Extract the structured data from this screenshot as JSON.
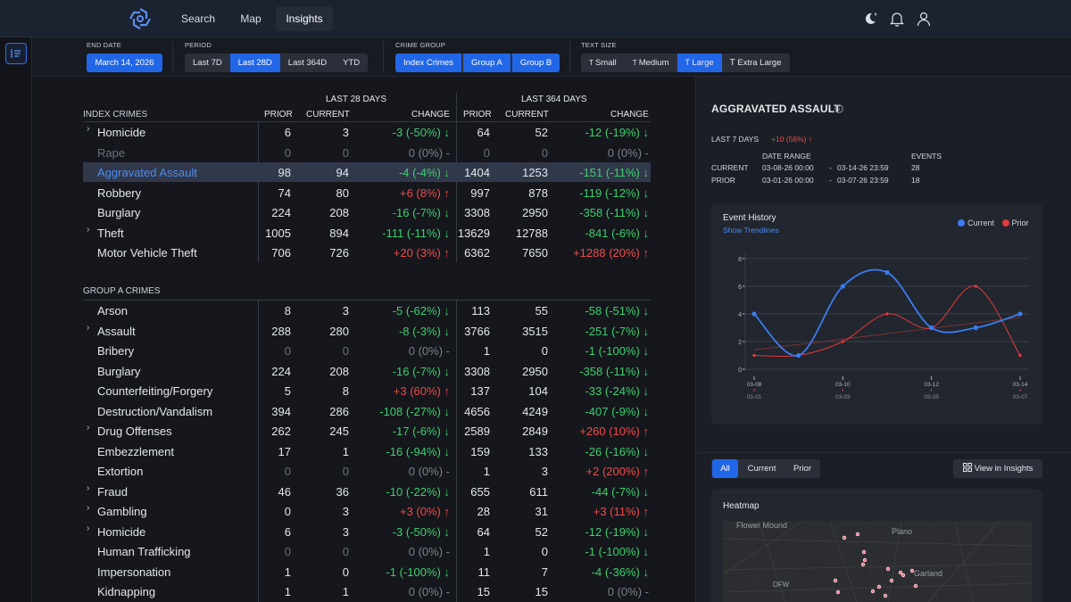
{
  "nav": {
    "tabs": [
      "Search",
      "Map",
      "Insights"
    ],
    "active_tab": "Insights"
  },
  "filters": {
    "end_date": {
      "label": "END DATE",
      "value": "March 14, 2026"
    },
    "period": {
      "label": "PERIOD",
      "options": [
        "Last 7D",
        "Last 28D",
        "Last 364D",
        "YTD"
      ],
      "selected": "Last 28D"
    },
    "crime_group": {
      "label": "CRIME GROUP",
      "options": [
        "Index Crimes",
        "Group A",
        "Group B"
      ],
      "selected": [
        "Index Crimes",
        "Group A",
        "Group B"
      ]
    },
    "text_size": {
      "label": "TEXT SIZE",
      "options": [
        "Small",
        "Medium",
        "Large",
        "Extra Large"
      ],
      "selected": "Large"
    }
  },
  "table": {
    "period_headers": [
      "LAST 28 DAYS",
      "LAST 364 DAYS"
    ],
    "columns": [
      "PRIOR",
      "CURRENT",
      "CHANGE",
      "PRIOR",
      "CURRENT",
      "CHANGE"
    ],
    "groups": [
      {
        "title": "INDEX CRIMES",
        "rows": [
          {
            "name": "Homicide",
            "chev": true,
            "p28": "6",
            "c28": "3",
            "ch28": "-3 (-50%) ↓",
            "p364": "64",
            "c364": "52",
            "ch364": "-12 (-19%) ↓"
          },
          {
            "name": "Rape",
            "chev": false,
            "dim": true,
            "p28": "0",
            "c28": "0",
            "ch28": "0 (0%) -",
            "p364": "0",
            "c364": "0",
            "ch364": "0 (0%) -"
          },
          {
            "name": "Aggravated Assault",
            "chev": false,
            "selected": true,
            "p28": "98",
            "c28": "94",
            "ch28": "-4 (-4%) ↓",
            "p364": "1404",
            "c364": "1253",
            "ch364": "-151 (-11%) ↓"
          },
          {
            "name": "Robbery",
            "chev": false,
            "p28": "74",
            "c28": "80",
            "ch28": "+6 (8%) ↑",
            "p364": "997",
            "c364": "878",
            "ch364": "-119 (-12%) ↓"
          },
          {
            "name": "Burglary",
            "chev": false,
            "p28": "224",
            "c28": "208",
            "ch28": "-16 (-7%) ↓",
            "p364": "3308",
            "c364": "2950",
            "ch364": "-358 (-11%) ↓"
          },
          {
            "name": "Theft",
            "chev": true,
            "p28": "1005",
            "c28": "894",
            "ch28": "-111 (-11%) ↓",
            "p364": "13629",
            "c364": "12788",
            "ch364": "-841 (-6%) ↓"
          },
          {
            "name": "Motor Vehicle Theft",
            "chev": false,
            "p28": "706",
            "c28": "726",
            "ch28": "+20 (3%) ↑",
            "p364": "6362",
            "c364": "7650",
            "ch364": "+1288 (20%) ↑"
          }
        ]
      },
      {
        "title": "GROUP A CRIMES",
        "rows": [
          {
            "name": "Arson",
            "chev": false,
            "p28": "8",
            "c28": "3",
            "ch28": "-5 (-62%) ↓",
            "p364": "113",
            "c364": "55",
            "ch364": "-58 (-51%) ↓"
          },
          {
            "name": "Assault",
            "chev": true,
            "p28": "288",
            "c28": "280",
            "ch28": "-8 (-3%) ↓",
            "p364": "3766",
            "c364": "3515",
            "ch364": "-251 (-7%) ↓"
          },
          {
            "name": "Bribery",
            "chev": false,
            "p28": "0",
            "c28": "0",
            "ch28": "0 (0%) -",
            "p364": "1",
            "c364": "0",
            "ch364": "-1 (-100%) ↓",
            "dim28": true
          },
          {
            "name": "Burglary",
            "chev": false,
            "p28": "224",
            "c28": "208",
            "ch28": "-16 (-7%) ↓",
            "p364": "3308",
            "c364": "2950",
            "ch364": "-358 (-11%) ↓"
          },
          {
            "name": "Counterfeiting/Forgery",
            "chev": false,
            "p28": "5",
            "c28": "8",
            "ch28": "+3 (60%) ↑",
            "p364": "137",
            "c364": "104",
            "ch364": "-33 (-24%) ↓"
          },
          {
            "name": "Destruction/Vandalism",
            "chev": false,
            "p28": "394",
            "c28": "286",
            "ch28": "-108 (-27%) ↓",
            "p364": "4656",
            "c364": "4249",
            "ch364": "-407 (-9%) ↓"
          },
          {
            "name": "Drug Offenses",
            "chev": true,
            "p28": "262",
            "c28": "245",
            "ch28": "-17 (-6%) ↓",
            "p364": "2589",
            "c364": "2849",
            "ch364": "+260 (10%) ↑"
          },
          {
            "name": "Embezzlement",
            "chev": false,
            "p28": "17",
            "c28": "1",
            "ch28": "-16 (-94%) ↓",
            "p364": "159",
            "c364": "133",
            "ch364": "-26 (-16%) ↓"
          },
          {
            "name": "Extortion",
            "chev": false,
            "p28": "0",
            "c28": "0",
            "ch28": "0 (0%) -",
            "p364": "1",
            "c364": "3",
            "ch364": "+2 (200%) ↑",
            "dim28": true
          },
          {
            "name": "Fraud",
            "chev": true,
            "p28": "46",
            "c28": "36",
            "ch28": "-10 (-22%) ↓",
            "p364": "655",
            "c364": "611",
            "ch364": "-44 (-7%) ↓"
          },
          {
            "name": "Gambling",
            "chev": true,
            "p28": "0",
            "c28": "3",
            "ch28": "+3 (0%) ↑",
            "p364": "28",
            "c364": "31",
            "ch364": "+3 (11%) ↑"
          },
          {
            "name": "Homicide",
            "chev": true,
            "p28": "6",
            "c28": "3",
            "ch28": "-3 (-50%) ↓",
            "p364": "64",
            "c364": "52",
            "ch364": "-12 (-19%) ↓"
          },
          {
            "name": "Human Trafficking",
            "chev": false,
            "p28": "0",
            "c28": "0",
            "ch28": "0 (0%) -",
            "p364": "1",
            "c364": "0",
            "ch364": "-1 (-100%) ↓",
            "dim28": true
          },
          {
            "name": "Impersonation",
            "chev": false,
            "p28": "1",
            "c28": "0",
            "ch28": "-1 (-100%) ↓",
            "p364": "11",
            "c364": "7",
            "ch364": "-4 (-36%) ↓"
          },
          {
            "name": "Kidnapping",
            "chev": false,
            "p28": "1",
            "c28": "1",
            "ch28": "0 (0%) -",
            "p364": "15",
            "c364": "15",
            "ch364": "0 (0%) -"
          }
        ]
      }
    ]
  },
  "detail": {
    "title": "AGGRAVATED ASSAULT",
    "last7_label": "LAST 7 DAYS",
    "last7_change": "+10 (56%) ↑",
    "headers": {
      "range": "DATE RANGE",
      "events": "EVENTS"
    },
    "current": {
      "label": "CURRENT",
      "from": "03-08-26 00:00",
      "to": "03-14-26 23:59",
      "events": "28"
    },
    "prior": {
      "label": "PRIOR",
      "from": "03-01-26 00:00",
      "to": "03-07-26 23:59",
      "events": "18"
    },
    "range_sep": "-"
  },
  "chart_data": {
    "type": "line",
    "title": "Event History",
    "link": "Show Trendlines",
    "x_current": [
      "03-08",
      "03-09",
      "03-10",
      "03-11",
      "03-12",
      "03-13",
      "03-14"
    ],
    "x_prior": [
      "03-01",
      "03-02",
      "03-03",
      "03-04",
      "03-05",
      "03-06",
      "03-07"
    ],
    "x_tick_current": [
      "03-08",
      "03-10",
      "03-12",
      "03-14"
    ],
    "x_tick_prior": [
      "03-01",
      "03-03",
      "03-05",
      "03-07"
    ],
    "series": [
      {
        "name": "Current",
        "color": "#3b7cf0",
        "values": [
          4,
          1,
          6,
          7,
          3,
          3,
          4
        ]
      },
      {
        "name": "Prior",
        "color": "#e0393e",
        "values": [
          1,
          1,
          2,
          4,
          3,
          6,
          1
        ]
      }
    ],
    "ylim": [
      0,
      8
    ],
    "yticks": [
      0,
      2,
      4,
      6,
      8
    ],
    "grid": true,
    "legend": "top-right"
  },
  "bottom": {
    "toggle": [
      "All",
      "Current",
      "Prior"
    ],
    "toggle_selected": "All",
    "view_button": "View in Insights",
    "heatmap_title": "Heatmap",
    "map_labels": [
      "Flower Mound",
      "Plano",
      "Garland",
      "DFW"
    ]
  },
  "colors": {
    "accent": "#2166e6",
    "positive_change": "#3ecf6e",
    "negative_change": "#f04a4a",
    "selected_row": "#30384a"
  }
}
